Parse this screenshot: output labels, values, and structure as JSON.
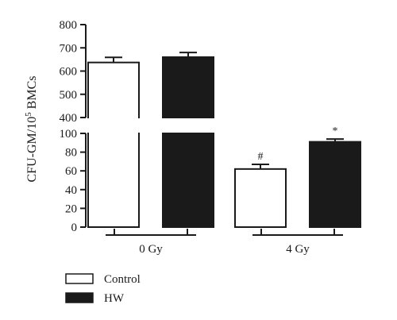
{
  "chart_data": {
    "type": "bar",
    "ylabel": "CFU-GM/10",
    "ylabel_sup": "5",
    "ylabel_suffix": " BMCs",
    "y_break": true,
    "y_segments": [
      {
        "range": [
          0,
          100
        ],
        "ticks": [
          0,
          20,
          40,
          60,
          80,
          100
        ]
      },
      {
        "range": [
          400,
          800
        ],
        "ticks": [
          400,
          500,
          600,
          700,
          800
        ]
      }
    ],
    "categories": [
      "0 Gy",
      "4 Gy"
    ],
    "series": [
      {
        "name": "Control",
        "color": "#ffffff",
        "values": [
          637,
          62
        ],
        "errors": [
          22,
          5
        ]
      },
      {
        "name": "HW",
        "color": "#1a1a1a",
        "values": [
          660,
          91
        ],
        "errors": [
          20,
          3
        ]
      }
    ],
    "annotations": [
      {
        "category": "4 Gy",
        "series": "Control",
        "text": "#"
      },
      {
        "category": "4 Gy",
        "series": "HW",
        "text": "*"
      }
    ],
    "legend_position": "bottom-left",
    "grid": false
  }
}
